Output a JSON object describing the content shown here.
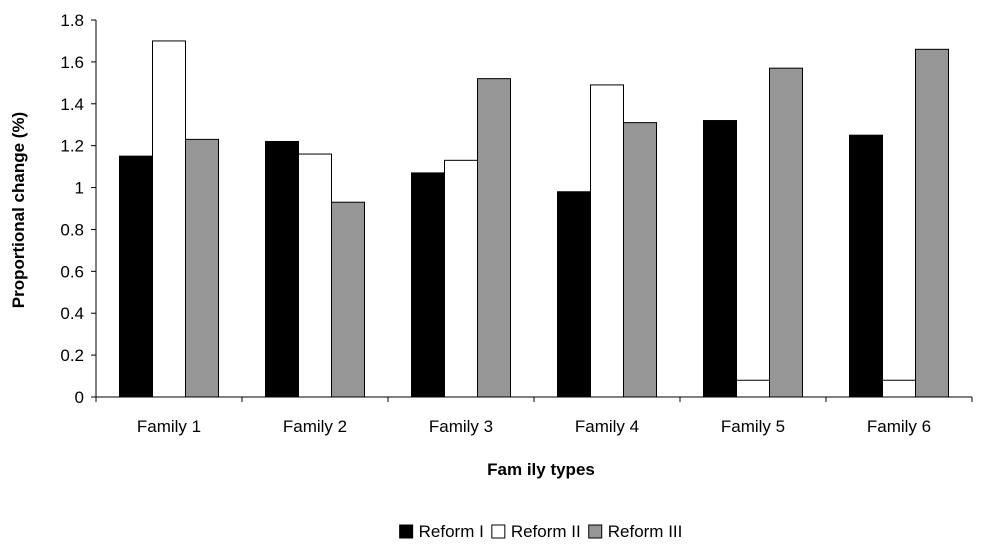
{
  "chart_data": {
    "type": "bar",
    "title": "",
    "xlabel": "Fam ily types",
    "ylabel": "Proportional change (%)",
    "categories": [
      "Family 1",
      "Family 2",
      "Family 3",
      "Family 4",
      "Family 5",
      "Family 6"
    ],
    "series": [
      {
        "name": "Reform I",
        "color": "#000000",
        "values": [
          1.15,
          1.22,
          1.07,
          0.98,
          1.32,
          1.25
        ]
      },
      {
        "name": "Reform II",
        "color": "#ffffff",
        "values": [
          1.7,
          1.16,
          1.13,
          1.49,
          0.08,
          0.08
        ]
      },
      {
        "name": "Reform III",
        "color": "#969696",
        "values": [
          1.23,
          0.93,
          1.52,
          1.31,
          1.57,
          1.66
        ]
      }
    ],
    "ylim": [
      0,
      1.8
    ],
    "yticks": [
      0,
      0.2,
      0.4,
      0.6,
      0.8,
      1,
      1.2,
      1.4,
      1.6,
      1.8
    ],
    "ytick_labels": [
      "0",
      "0.2",
      "0.4",
      "0.6",
      "0.8",
      "1",
      "1.2",
      "1.4",
      "1.6",
      "1.8"
    ],
    "grid": false,
    "legend_position": "bottom-center"
  }
}
